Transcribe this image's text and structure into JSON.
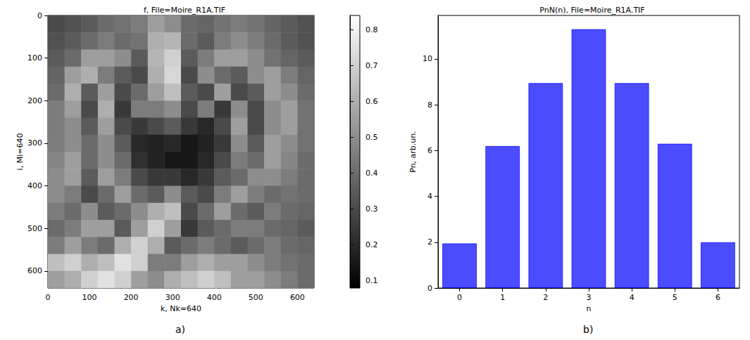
{
  "chart_data": [
    {
      "type": "heatmap",
      "panel": "a)",
      "title": "f, File=Moire_R1A.TIF",
      "x_label": "k, Nk=640",
      "y_label": "i, Mi=640",
      "xlim": [
        0,
        640
      ],
      "ylim": [
        0,
        640
      ],
      "xticks": [
        0,
        100,
        200,
        300,
        400,
        500,
        600
      ],
      "yticks": [
        0,
        100,
        200,
        300,
        400,
        500,
        600
      ],
      "cells": [
        [
          0.3,
          0.32,
          0.35,
          0.4,
          0.42,
          0.45,
          0.55,
          0.5,
          0.4,
          0.38,
          0.42,
          0.45,
          0.42,
          0.38,
          0.35,
          0.32
        ],
        [
          0.32,
          0.35,
          0.4,
          0.45,
          0.4,
          0.42,
          0.6,
          0.62,
          0.4,
          0.35,
          0.45,
          0.5,
          0.45,
          0.4,
          0.35,
          0.32
        ],
        [
          0.35,
          0.4,
          0.55,
          0.55,
          0.5,
          0.35,
          0.62,
          0.7,
          0.35,
          0.45,
          0.55,
          0.55,
          0.5,
          0.42,
          0.38,
          0.35
        ],
        [
          0.38,
          0.55,
          0.6,
          0.45,
          0.35,
          0.3,
          0.6,
          0.72,
          0.3,
          0.5,
          0.4,
          0.35,
          0.5,
          0.55,
          0.45,
          0.38
        ],
        [
          0.4,
          0.6,
          0.35,
          0.55,
          0.3,
          0.4,
          0.55,
          0.65,
          0.35,
          0.3,
          0.55,
          0.3,
          0.35,
          0.55,
          0.5,
          0.4
        ],
        [
          0.45,
          0.55,
          0.3,
          0.6,
          0.25,
          0.45,
          0.45,
          0.5,
          0.3,
          0.45,
          0.25,
          0.5,
          0.3,
          0.5,
          0.55,
          0.42
        ],
        [
          0.45,
          0.5,
          0.35,
          0.55,
          0.3,
          0.25,
          0.3,
          0.35,
          0.25,
          0.2,
          0.3,
          0.55,
          0.3,
          0.5,
          0.55,
          0.42
        ],
        [
          0.45,
          0.5,
          0.4,
          0.5,
          0.35,
          0.2,
          0.18,
          0.2,
          0.15,
          0.18,
          0.25,
          0.5,
          0.35,
          0.55,
          0.5,
          0.42
        ],
        [
          0.48,
          0.55,
          0.4,
          0.5,
          0.4,
          0.22,
          0.18,
          0.15,
          0.15,
          0.2,
          0.3,
          0.45,
          0.4,
          0.55,
          0.48,
          0.4
        ],
        [
          0.5,
          0.55,
          0.35,
          0.55,
          0.45,
          0.3,
          0.25,
          0.25,
          0.2,
          0.25,
          0.35,
          0.4,
          0.5,
          0.5,
          0.45,
          0.4
        ],
        [
          0.5,
          0.45,
          0.3,
          0.4,
          0.55,
          0.4,
          0.35,
          0.5,
          0.35,
          0.3,
          0.45,
          0.55,
          0.45,
          0.4,
          0.42,
          0.4
        ],
        [
          0.45,
          0.4,
          0.5,
          0.35,
          0.4,
          0.5,
          0.6,
          0.65,
          0.3,
          0.4,
          0.55,
          0.4,
          0.35,
          0.45,
          0.4,
          0.38
        ],
        [
          0.4,
          0.45,
          0.55,
          0.55,
          0.35,
          0.55,
          0.7,
          0.55,
          0.25,
          0.35,
          0.4,
          0.45,
          0.45,
          0.4,
          0.38,
          0.35
        ],
        [
          0.45,
          0.55,
          0.45,
          0.4,
          0.6,
          0.7,
          0.6,
          0.35,
          0.4,
          0.45,
          0.4,
          0.35,
          0.4,
          0.45,
          0.4,
          0.38
        ],
        [
          0.65,
          0.7,
          0.6,
          0.65,
          0.75,
          0.7,
          0.45,
          0.45,
          0.55,
          0.6,
          0.55,
          0.55,
          0.5,
          0.45,
          0.42,
          0.4
        ],
        [
          0.55,
          0.6,
          0.7,
          0.75,
          0.7,
          0.55,
          0.5,
          0.6,
          0.65,
          0.7,
          0.65,
          0.55,
          0.55,
          0.5,
          0.45,
          0.4
        ]
      ],
      "colorbar": {
        "range": [
          0.08,
          0.84
        ],
        "ticks": [
          0.1,
          0.2,
          0.3,
          0.4,
          0.5,
          0.6,
          0.7,
          0.8
        ]
      }
    },
    {
      "type": "bar",
      "panel": "b)",
      "title": "PnN(n), File=Moire_R1A.TIF",
      "x_label": "n",
      "y_label": "Pn, arb.un.",
      "categories": [
        "0",
        "1",
        "2",
        "3",
        "4",
        "5",
        "6"
      ],
      "values": [
        1.95,
        6.2,
        8.95,
        11.3,
        8.95,
        6.3,
        2.0
      ],
      "color": "#0000ff",
      "ylim": [
        0,
        11.9
      ],
      "yticks": [
        0,
        2,
        4,
        6,
        8,
        10
      ]
    }
  ]
}
